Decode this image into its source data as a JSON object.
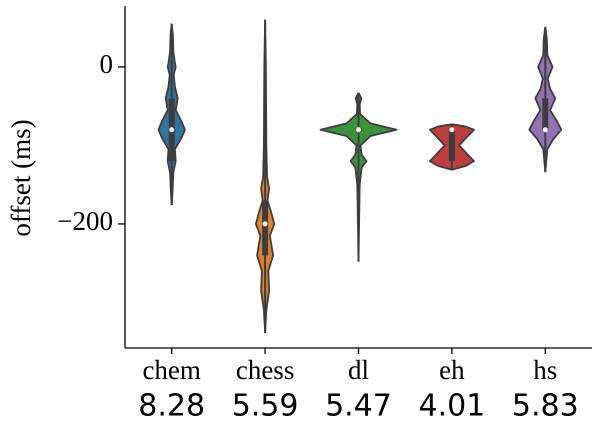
{
  "chart_data": {
    "type": "violin",
    "ylabel": "offset (ms)",
    "ylim": [
      -358,
      75
    ],
    "yticks": [
      0,
      {
        "value": -200,
        "label": "−200"
      }
    ],
    "categories": [
      "chem",
      "chess",
      "dl",
      "eh",
      "hs"
    ],
    "scores": [
      8.28,
      5.59,
      5.47,
      4.01,
      5.83
    ],
    "series": [
      {
        "color": "#3274a1",
        "min": -176,
        "max": 55,
        "q1": -120,
        "median": -80,
        "q3": -40,
        "kde_y": [
          55,
          40,
          20,
          5,
          0,
          -10,
          -25,
          -40,
          -55,
          -70,
          -80,
          -90,
          -105,
          -120,
          -135,
          -160,
          -176
        ],
        "kde_width": [
          0,
          0.03,
          0.04,
          0.08,
          0.1,
          0.05,
          0.08,
          0.15,
          0.1,
          0.25,
          0.33,
          0.25,
          0.08,
          0.1,
          0.04,
          0.02,
          0
        ]
      },
      {
        "color": "#e1812c",
        "min": -339,
        "max": 60,
        "q1": -240,
        "median": -200,
        "q3": -170,
        "kde_y": [
          60,
          0,
          -100,
          -140,
          -155,
          -170,
          -185,
          -200,
          -215,
          -240,
          -260,
          -285,
          -310,
          -339
        ],
        "kde_width": [
          0,
          0.02,
          0.03,
          0.05,
          0.1,
          0.06,
          0.15,
          0.23,
          0.12,
          0.2,
          0.08,
          0.1,
          0.03,
          0
        ]
      },
      {
        "color": "#3a923a",
        "min": -248,
        "max": -33,
        "q1": -82,
        "median": -80,
        "q3": -78,
        "kde_y": [
          -33,
          -40,
          -48,
          -60,
          -72,
          -80,
          -88,
          -100,
          -112,
          -120,
          -128,
          -150,
          -248
        ],
        "kde_width": [
          0,
          0.07,
          0.03,
          0.04,
          0.3,
          0.95,
          0.3,
          0.05,
          0.08,
          0.2,
          0.08,
          0.03,
          0
        ]
      },
      {
        "color": "#c03d3e",
        "min": -131,
        "max": -73,
        "q1": -120,
        "median": -80,
        "q3": -80,
        "kde_y": [
          -73,
          -76,
          -80,
          -88,
          -100,
          -112,
          -120,
          -126,
          -131
        ],
        "kde_width": [
          0,
          0.35,
          0.55,
          0.4,
          0.18,
          0.4,
          0.55,
          0.35,
          0
        ]
      },
      {
        "color": "#9372b2",
        "min": -134,
        "max": 51,
        "q1": -80,
        "median": -80,
        "q3": -40,
        "kde_y": [
          51,
          35,
          15,
          0,
          -15,
          -28,
          -40,
          -55,
          -70,
          -80,
          -92,
          -105,
          -134
        ],
        "kde_width": [
          0,
          0.04,
          0.05,
          0.18,
          0.06,
          0.12,
          0.25,
          0.12,
          0.3,
          0.4,
          0.2,
          0.05,
          0
        ]
      }
    ]
  }
}
